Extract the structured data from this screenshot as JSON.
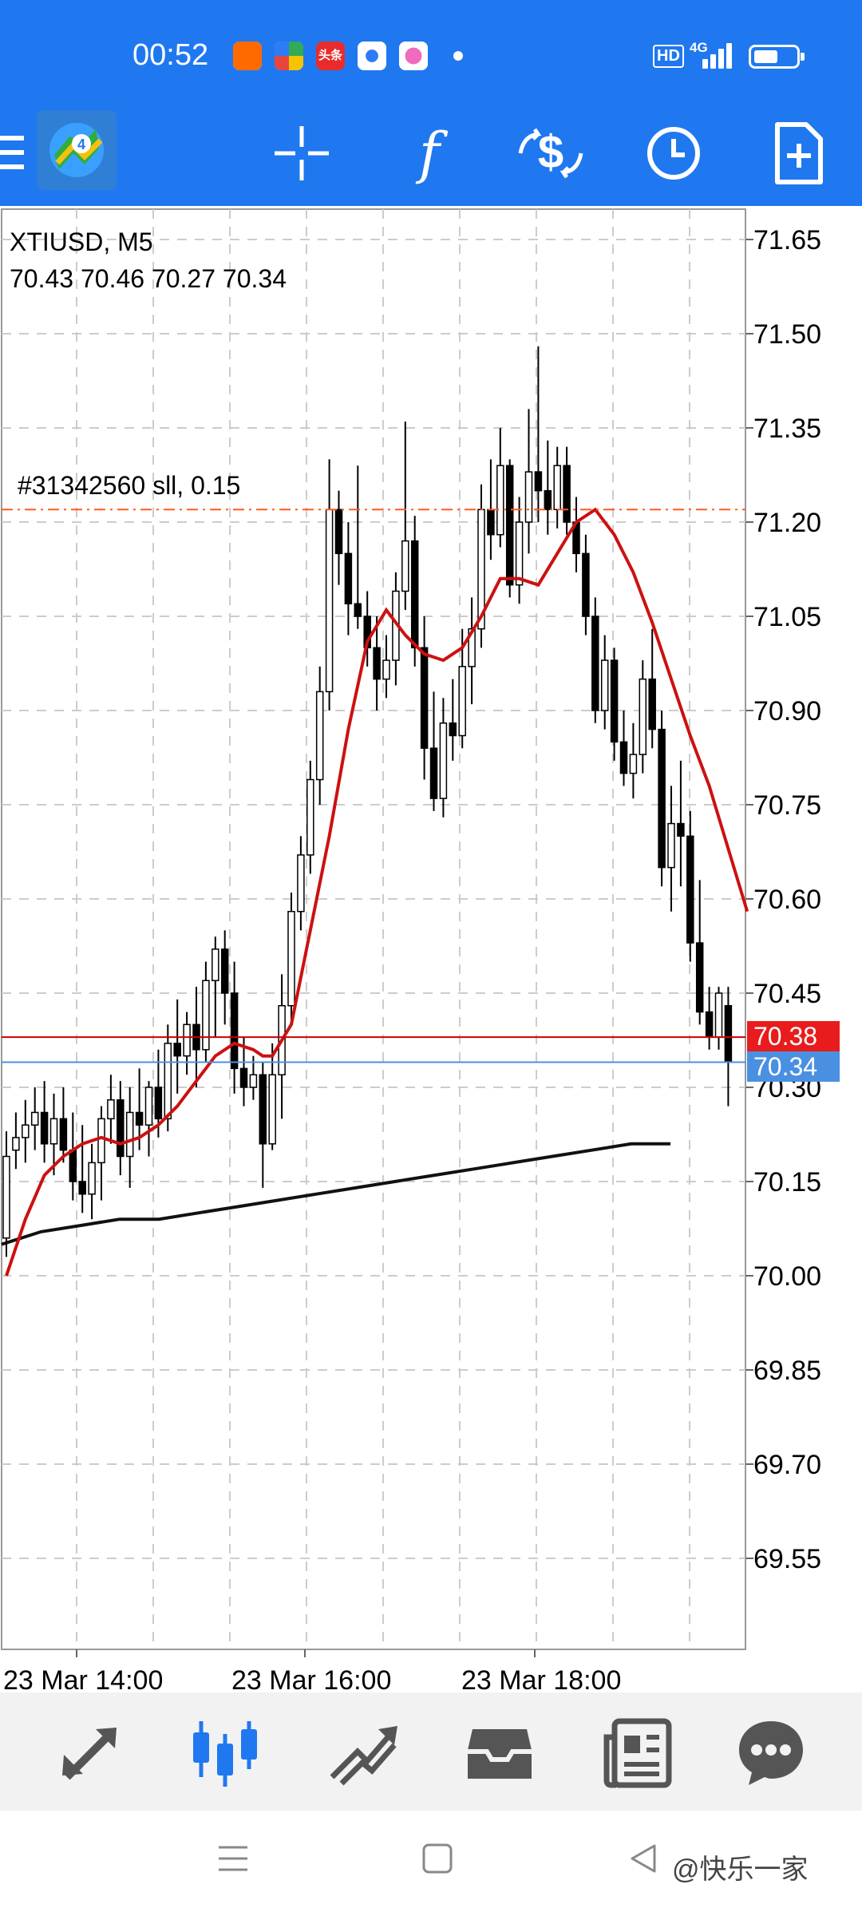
{
  "status_bar": {
    "time": "00:52",
    "hd_badge": "HD",
    "network": "4G",
    "battery_level": 0.55,
    "notification_icons": [
      {
        "icon": "app-f-icon",
        "color": "#ff6a00"
      },
      {
        "icon": "app-pinwheel-icon",
        "color": "#33aa55"
      },
      {
        "icon": "app-toutiao-icon",
        "color": "#e82c2c",
        "text": "头条"
      },
      {
        "icon": "app-camera-icon",
        "color": "#2d7cf6"
      },
      {
        "icon": "app-bubble-icon",
        "color": "#f06bc0"
      }
    ]
  },
  "toolbar": {
    "icons": [
      "menu-icon",
      "metatrader-logo-icon",
      "crosshair-icon",
      "indicators-icon",
      "trade-icon",
      "timeframe-icon",
      "new-order-icon"
    ],
    "indicators_glyph": "f"
  },
  "chart": {
    "symbol_line": "XTIUSD, M5",
    "ohlc_line": "70.43 70.46 70.27 70.34",
    "order_label": "#31342560 sll, 0.15",
    "bid_badge": "70.38",
    "ask_badge": "70.34",
    "colors": {
      "ma_fast": "#cc1111",
      "ma_slow": "#111111",
      "order_line": "#ff5a1f",
      "bid_line": "#cc0000",
      "ask_line": "#4a90e2",
      "bid_badge": "#e81c1c",
      "ask_badge": "#4a90e2",
      "grid": "#cccccc"
    },
    "y_ticks": [
      "71.65",
      "71.50",
      "71.35",
      "71.20",
      "71.05",
      "70.90",
      "70.75",
      "70.60",
      "70.45",
      "70.30",
      "70.15",
      "70.00",
      "69.85",
      "69.70",
      "69.55"
    ],
    "x_ticks": [
      "23 Mar 14:00",
      "23 Mar 16:00",
      "23 Mar 18:00"
    ],
    "order_price": 71.22,
    "bid_price": 70.38,
    "ask_price": 70.34
  },
  "chart_data": {
    "type": "candlestick",
    "symbol": "XTIUSD",
    "timeframe": "M5",
    "title": "XTIUSD, M5",
    "last_ohlc": {
      "open": 70.43,
      "high": 70.46,
      "low": 70.27,
      "close": 70.34
    },
    "ylim": [
      69.4,
      71.7
    ],
    "grid": true,
    "x_tick_labels": [
      "23 Mar 14:00",
      "23 Mar 16:00",
      "23 Mar 18:00"
    ],
    "candles": [
      [
        70.06,
        70.23,
        70.03,
        70.19
      ],
      [
        70.2,
        70.26,
        70.17,
        70.22
      ],
      [
        70.22,
        70.28,
        70.18,
        70.24
      ],
      [
        70.24,
        70.3,
        70.2,
        70.26
      ],
      [
        70.26,
        70.31,
        70.18,
        70.21
      ],
      [
        70.21,
        70.29,
        70.16,
        70.25
      ],
      [
        70.25,
        70.3,
        70.18,
        70.2
      ],
      [
        70.2,
        70.26,
        70.12,
        70.15
      ],
      [
        70.15,
        70.24,
        70.1,
        70.13
      ],
      [
        70.13,
        70.21,
        70.09,
        70.18
      ],
      [
        70.18,
        70.27,
        70.12,
        70.25
      ],
      [
        70.25,
        70.32,
        70.21,
        70.28
      ],
      [
        70.28,
        70.31,
        70.16,
        70.19
      ],
      [
        70.19,
        70.3,
        70.14,
        70.26
      ],
      [
        70.26,
        70.33,
        70.2,
        70.24
      ],
      [
        70.24,
        70.31,
        70.19,
        70.3
      ],
      [
        70.3,
        70.36,
        70.22,
        70.25
      ],
      [
        70.25,
        70.4,
        70.23,
        70.37
      ],
      [
        70.37,
        70.44,
        70.29,
        70.35
      ],
      [
        70.35,
        70.42,
        70.32,
        70.4
      ],
      [
        70.4,
        70.46,
        70.3,
        70.36
      ],
      [
        70.36,
        70.5,
        70.34,
        70.47
      ],
      [
        70.47,
        70.54,
        70.38,
        70.52
      ],
      [
        70.52,
        70.55,
        70.4,
        70.45
      ],
      [
        70.45,
        70.5,
        70.29,
        70.33
      ],
      [
        70.33,
        70.38,
        70.27,
        70.3
      ],
      [
        70.3,
        70.35,
        70.28,
        70.32
      ],
      [
        70.32,
        70.34,
        70.14,
        70.21
      ],
      [
        70.21,
        70.37,
        70.2,
        70.32
      ],
      [
        70.32,
        70.48,
        70.25,
        70.43
      ],
      [
        70.43,
        70.61,
        70.4,
        70.58
      ],
      [
        70.58,
        70.7,
        70.55,
        70.67
      ],
      [
        70.67,
        70.82,
        70.64,
        70.79
      ],
      [
        70.79,
        70.97,
        70.75,
        70.93
      ],
      [
        70.93,
        71.3,
        70.9,
        71.22
      ],
      [
        71.22,
        71.25,
        71.1,
        71.15
      ],
      [
        71.15,
        71.2,
        71.02,
        71.07
      ],
      [
        71.07,
        71.29,
        71.03,
        71.05
      ],
      [
        71.05,
        71.09,
        70.97,
        71.0
      ],
      [
        71.0,
        71.05,
        70.9,
        70.95
      ],
      [
        70.95,
        71.02,
        70.92,
        70.98
      ],
      [
        70.98,
        71.12,
        70.94,
        71.09
      ],
      [
        71.09,
        71.36,
        71.06,
        71.17
      ],
      [
        71.17,
        71.21,
        70.97,
        71.0
      ],
      [
        71.0,
        71.05,
        70.79,
        70.84
      ],
      [
        70.84,
        70.93,
        70.74,
        70.76
      ],
      [
        70.76,
        70.92,
        70.73,
        70.88
      ],
      [
        70.88,
        70.95,
        70.82,
        70.86
      ],
      [
        70.86,
        71.03,
        70.84,
        70.97
      ],
      [
        70.97,
        71.08,
        70.91,
        71.03
      ],
      [
        71.03,
        71.26,
        71.0,
        71.22
      ],
      [
        71.22,
        71.3,
        71.14,
        71.18
      ],
      [
        71.18,
        71.35,
        71.16,
        71.29
      ],
      [
        71.29,
        71.3,
        71.08,
        71.1
      ],
      [
        71.1,
        71.24,
        71.07,
        71.2
      ],
      [
        71.2,
        71.38,
        71.15,
        71.28
      ],
      [
        71.28,
        71.48,
        71.2,
        71.25
      ],
      [
        71.25,
        71.33,
        71.18,
        71.22
      ],
      [
        71.22,
        71.32,
        71.19,
        71.29
      ],
      [
        71.29,
        71.32,
        71.18,
        71.2
      ],
      [
        71.2,
        71.24,
        71.12,
        71.15
      ],
      [
        71.15,
        71.18,
        71.02,
        71.05
      ],
      [
        71.05,
        71.08,
        70.88,
        70.9
      ],
      [
        70.9,
        71.02,
        70.87,
        70.98
      ],
      [
        70.98,
        71.0,
        70.82,
        70.85
      ],
      [
        70.85,
        70.9,
        70.78,
        70.8
      ],
      [
        70.8,
        70.88,
        70.76,
        70.83
      ],
      [
        70.83,
        70.98,
        70.8,
        70.95
      ],
      [
        70.95,
        71.03,
        70.84,
        70.87
      ],
      [
        70.87,
        70.9,
        70.62,
        70.65
      ],
      [
        70.65,
        70.78,
        70.58,
        70.72
      ],
      [
        70.72,
        70.82,
        70.62,
        70.7
      ],
      [
        70.7,
        70.74,
        70.5,
        70.53
      ],
      [
        70.53,
        70.63,
        70.4,
        70.42
      ],
      [
        70.42,
        70.46,
        70.36,
        70.38
      ],
      [
        70.38,
        70.46,
        70.36,
        70.45
      ],
      [
        70.43,
        70.46,
        70.27,
        70.34
      ]
    ],
    "ma_fast": [
      70.0,
      70.09,
      70.16,
      70.19,
      70.21,
      70.22,
      70.21,
      70.22,
      70.24,
      70.27,
      70.31,
      70.35,
      70.37,
      70.36,
      70.35,
      70.35,
      70.4,
      70.55,
      70.7,
      70.87,
      71.01,
      71.06,
      71.02,
      70.99,
      70.98,
      71.0,
      71.05,
      71.11,
      71.11,
      71.1,
      71.15,
      71.2,
      71.22,
      71.18,
      71.12,
      71.04,
      70.95,
      70.86,
      70.78,
      70.68,
      70.58
    ],
    "ma_fast_x": [
      0,
      2,
      4,
      6,
      8,
      10,
      12,
      14,
      16,
      18,
      20,
      22,
      24,
      26,
      27,
      28,
      30,
      32,
      34,
      36,
      38,
      40,
      42,
      44,
      46,
      48,
      50,
      52,
      54,
      56,
      58,
      60,
      62,
      64,
      66,
      68,
      70,
      72,
      74,
      76,
      78
    ],
    "ma_slow": [
      70.05,
      70.07,
      70.08,
      70.09,
      70.09,
      70.1,
      70.11,
      70.12,
      70.13,
      70.14,
      70.15,
      70.16,
      70.17,
      70.18,
      70.19,
      70.2,
      70.21,
      70.21
    ],
    "series": [
      {
        "name": "ma_fast",
        "color": "#cc1111"
      },
      {
        "name": "ma_slow",
        "color": "#111111"
      }
    ]
  },
  "bottom_nav": {
    "items": [
      {
        "icon": "quotes-icon",
        "active": false
      },
      {
        "icon": "chart-icon",
        "active": true
      },
      {
        "icon": "trade-history-icon",
        "active": false
      },
      {
        "icon": "history-inbox-icon",
        "active": false
      },
      {
        "icon": "news-icon",
        "active": false
      },
      {
        "icon": "messages-icon",
        "active": false
      }
    ],
    "active_color": "#1f78f0",
    "inactive_color": "#555555"
  },
  "system_bar": {
    "watermark": "@快乐一家"
  }
}
